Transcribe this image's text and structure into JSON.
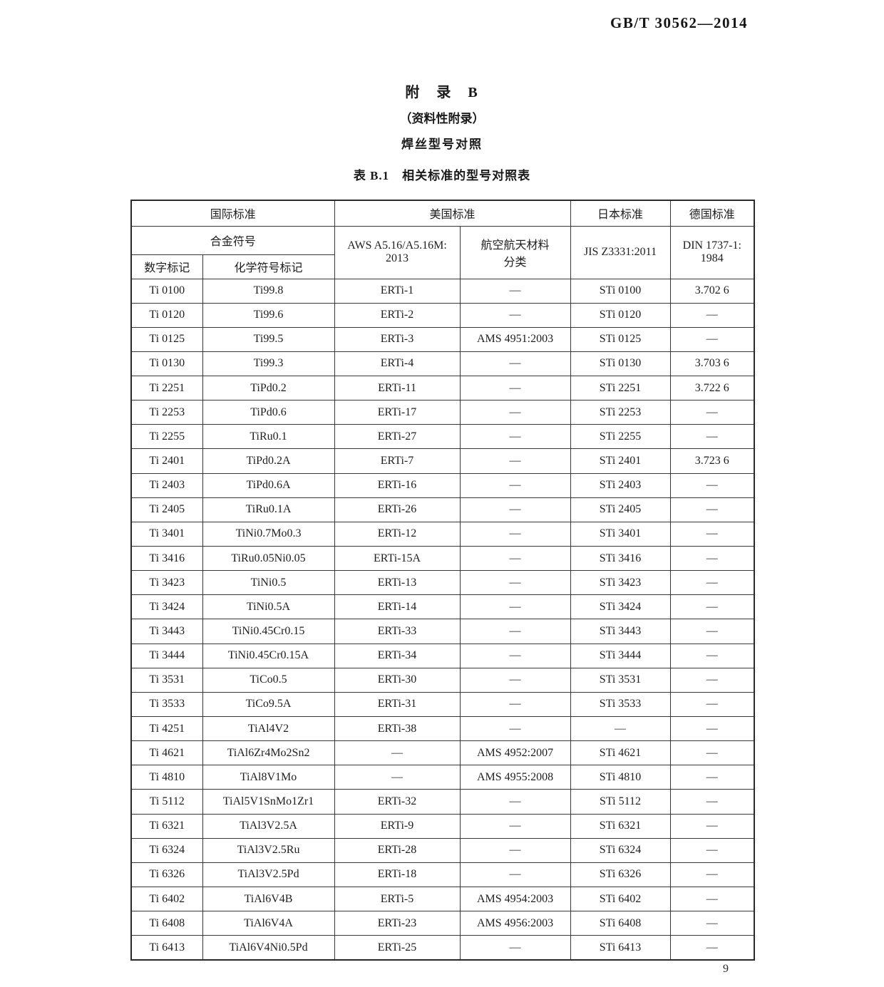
{
  "page": {
    "doc_code": "GB/T 30562—2014",
    "page_number": "9"
  },
  "appendix": {
    "title": "附　录　B",
    "note": "（资料性附录）",
    "subject": "焊丝型号对照"
  },
  "table": {
    "caption": "表 B.1　相关标准的型号对照表",
    "header": {
      "intl_standard": "国际标准",
      "us_standard": "美国标准",
      "jp_standard": "日本标准",
      "de_standard": "德国标准",
      "alloy_symbol": "合金符号",
      "numeric_mark": "数字标记",
      "chemical_mark": "化学符号标记",
      "aws": "AWS A5.16/A5.16M:\n2013",
      "aerospace": "航空航天材料\n分类",
      "jis": "JIS Z3331:2011",
      "din": "DIN 1737-1:\n1984"
    },
    "column_keys": [
      "numeric-designation",
      "chemical-designation",
      "aws-classification",
      "aerospace-classification",
      "jis-classification",
      "din-classification"
    ],
    "rows": [
      [
        "Ti 0100",
        "Ti99.8",
        "ERTi-1",
        "—",
        "STi 0100",
        "3.702 6"
      ],
      [
        "Ti 0120",
        "Ti99.6",
        "ERTi-2",
        "—",
        "STi 0120",
        "—"
      ],
      [
        "Ti 0125",
        "Ti99.5",
        "ERTi-3",
        "AMS 4951:2003",
        "STi 0125",
        "—"
      ],
      [
        "Ti 0130",
        "Ti99.3",
        "ERTi-4",
        "—",
        "STi 0130",
        "3.703 6"
      ],
      [
        "Ti 2251",
        "TiPd0.2",
        "ERTi-11",
        "—",
        "STi 2251",
        "3.722 6"
      ],
      [
        "Ti 2253",
        "TiPd0.6",
        "ERTi-17",
        "—",
        "STi 2253",
        "—"
      ],
      [
        "Ti 2255",
        "TiRu0.1",
        "ERTi-27",
        "—",
        "STi 2255",
        "—"
      ],
      [
        "Ti 2401",
        "TiPd0.2A",
        "ERTi-7",
        "—",
        "STi 2401",
        "3.723 6"
      ],
      [
        "Ti 2403",
        "TiPd0.6A",
        "ERTi-16",
        "—",
        "STi 2403",
        "—"
      ],
      [
        "Ti 2405",
        "TiRu0.1A",
        "ERTi-26",
        "—",
        "STi 2405",
        "—"
      ],
      [
        "Ti 3401",
        "TiNi0.7Mo0.3",
        "ERTi-12",
        "—",
        "STi 3401",
        "—"
      ],
      [
        "Ti 3416",
        "TiRu0.05Ni0.05",
        "ERTi-15A",
        "—",
        "STi 3416",
        "—"
      ],
      [
        "Ti 3423",
        "TiNi0.5",
        "ERTi-13",
        "—",
        "STi 3423",
        "—"
      ],
      [
        "Ti 3424",
        "TiNi0.5A",
        "ERTi-14",
        "—",
        "STi 3424",
        "—"
      ],
      [
        "Ti 3443",
        "TiNi0.45Cr0.15",
        "ERTi-33",
        "—",
        "STi 3443",
        "—"
      ],
      [
        "Ti 3444",
        "TiNi0.45Cr0.15A",
        "ERTi-34",
        "—",
        "STi 3444",
        "—"
      ],
      [
        "Ti 3531",
        "TiCo0.5",
        "ERTi-30",
        "—",
        "STi 3531",
        "—"
      ],
      [
        "Ti 3533",
        "TiCo9.5A",
        "ERTi-31",
        "—",
        "STi 3533",
        "—"
      ],
      [
        "Ti 4251",
        "TiAl4V2",
        "ERTi-38",
        "—",
        "—",
        "—"
      ],
      [
        "Ti 4621",
        "TiAl6Zr4Mo2Sn2",
        "—",
        "AMS 4952:2007",
        "STi 4621",
        "—"
      ],
      [
        "Ti 4810",
        "TiAl8V1Mo",
        "—",
        "AMS 4955:2008",
        "STi 4810",
        "—"
      ],
      [
        "Ti 5112",
        "TiAl5V1SnMo1Zr1",
        "ERTi-32",
        "—",
        "STi 5112",
        "—"
      ],
      [
        "Ti 6321",
        "TiAl3V2.5A",
        "ERTi-9",
        "—",
        "STi 6321",
        "—"
      ],
      [
        "Ti 6324",
        "TiAl3V2.5Ru",
        "ERTi-28",
        "—",
        "STi 6324",
        "—"
      ],
      [
        "Ti 6326",
        "TiAl3V2.5Pd",
        "ERTi-18",
        "—",
        "STi 6326",
        "—"
      ],
      [
        "Ti 6402",
        "TiAl6V4B",
        "ERTi-5",
        "AMS 4954:2003",
        "STi 6402",
        "—"
      ],
      [
        "Ti 6408",
        "TiAl6V4A",
        "ERTi-23",
        "AMS 4956:2003",
        "STi 6408",
        "—"
      ],
      [
        "Ti 6413",
        "TiAl6V4Ni0.5Pd",
        "ERTi-25",
        "—",
        "STi 6413",
        "—"
      ]
    ]
  }
}
